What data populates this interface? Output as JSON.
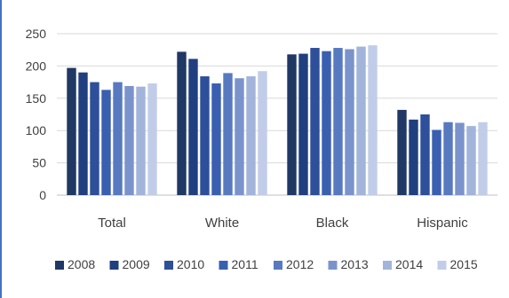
{
  "chart_data": {
    "type": "bar",
    "title": "",
    "xlabel": "",
    "ylabel": "",
    "ylim": [
      0,
      250
    ],
    "yticks": [
      0,
      50,
      100,
      150,
      200,
      250
    ],
    "grid": true,
    "legend_position": "bottom",
    "categories": [
      "Total",
      "White",
      "Black",
      "Hispanic"
    ],
    "series": [
      {
        "name": "2008",
        "color": "#1f3864",
        "values": [
          197,
          222,
          218,
          132
        ]
      },
      {
        "name": "2009",
        "color": "#203f7f",
        "values": [
          190,
          211,
          219,
          117
        ]
      },
      {
        "name": "2010",
        "color": "#2e4f99",
        "values": [
          175,
          184,
          228,
          125
        ]
      },
      {
        "name": "2011",
        "color": "#3a5fb0",
        "values": [
          163,
          173,
          223,
          101
        ]
      },
      {
        "name": "2012",
        "color": "#5779c0",
        "values": [
          175,
          189,
          228,
          113
        ]
      },
      {
        "name": "2013",
        "color": "#7b93cc",
        "values": [
          169,
          181,
          226,
          112
        ]
      },
      {
        "name": "2014",
        "color": "#a2b4da",
        "values": [
          168,
          184,
          230,
          107
        ]
      },
      {
        "name": "2015",
        "color": "#c1cde8",
        "values": [
          173,
          192,
          232,
          113
        ]
      }
    ]
  }
}
